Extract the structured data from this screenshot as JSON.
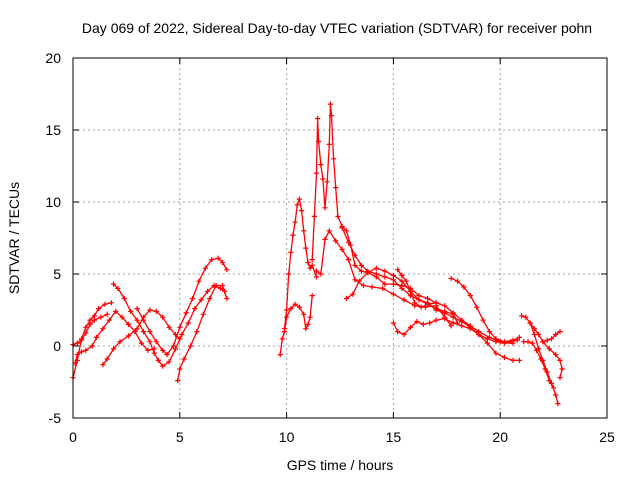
{
  "colors": {
    "series": "#ff0000",
    "text": "#000000",
    "grid": "#a0a0a0",
    "background": "#ffffff"
  },
  "chart_data": {
    "type": "scatter",
    "title": "Day 069 of 2022, Sidereal Day-to-day VTEC variation (SDTVAR) for receiver pohn",
    "xlabel": "GPS time / hours",
    "ylabel": "SDTVAR / TECUs",
    "xlim": [
      0,
      25
    ],
    "ylim": [
      -5,
      20
    ],
    "xticks": [
      0,
      5,
      10,
      15,
      20,
      25
    ],
    "yticks": [
      -5,
      0,
      5,
      10,
      15,
      20
    ],
    "grid": true,
    "marker": "+",
    "series": [
      {
        "name": "s1",
        "points": [
          [
            0.0,
            -2.2
          ],
          [
            0.2,
            -1.0
          ],
          [
            0.4,
            0.5
          ],
          [
            0.6,
            1.3
          ],
          [
            0.8,
            1.8
          ],
          [
            1.0,
            2.1
          ],
          [
            1.2,
            2.6
          ],
          [
            1.5,
            2.9
          ],
          [
            1.8,
            3.0
          ]
        ]
      },
      {
        "name": "s2",
        "points": [
          [
            0.0,
            0.1
          ],
          [
            0.2,
            0.2
          ],
          [
            0.4,
            0.4
          ],
          [
            0.6,
            0.9
          ],
          [
            0.8,
            1.5
          ],
          [
            1.0,
            1.8
          ],
          [
            1.3,
            2.0
          ],
          [
            1.6,
            2.2
          ]
        ]
      },
      {
        "name": "s3",
        "points": [
          [
            0.1,
            -1.2
          ],
          [
            0.2,
            -0.6
          ],
          [
            0.4,
            -0.4
          ],
          [
            0.6,
            -0.3
          ],
          [
            0.9,
            0.0
          ],
          [
            1.1,
            0.6
          ],
          [
            1.4,
            1.2
          ],
          [
            1.7,
            1.8
          ],
          [
            2.0,
            2.4
          ],
          [
            2.3,
            2.0
          ],
          [
            2.6,
            1.5
          ],
          [
            2.9,
            1.0
          ],
          [
            3.2,
            0.2
          ],
          [
            3.5,
            -0.3
          ],
          [
            3.8,
            -0.2
          ]
        ]
      },
      {
        "name": "s4",
        "points": [
          [
            1.4,
            -1.3
          ],
          [
            1.6,
            -0.9
          ],
          [
            1.9,
            -0.2
          ],
          [
            2.2,
            0.3
          ],
          [
            2.6,
            0.7
          ],
          [
            3.0,
            1.2
          ],
          [
            3.3,
            2.0
          ],
          [
            3.6,
            2.5
          ],
          [
            3.9,
            2.4
          ],
          [
            4.2,
            2.0
          ],
          [
            4.5,
            1.3
          ],
          [
            4.8,
            0.8
          ],
          [
            5.0,
            0.5
          ]
        ]
      },
      {
        "name": "s5",
        "points": [
          [
            1.9,
            4.3
          ],
          [
            2.1,
            4.0
          ],
          [
            2.4,
            3.3
          ],
          [
            2.7,
            2.4
          ],
          [
            3.0,
            1.8
          ],
          [
            3.3,
            1.0
          ],
          [
            3.6,
            0.3
          ],
          [
            3.8,
            -0.5
          ],
          [
            4.0,
            -1.0
          ],
          [
            4.2,
            -1.4
          ],
          [
            4.5,
            -1.1
          ],
          [
            4.8,
            -0.2
          ],
          [
            5.1,
            0.8
          ],
          [
            5.4,
            1.6
          ],
          [
            5.7,
            2.6
          ],
          [
            6.0,
            3.2
          ],
          [
            6.3,
            3.8
          ],
          [
            6.6,
            4.2
          ],
          [
            6.9,
            4.0
          ],
          [
            7.1,
            3.8
          ]
        ]
      },
      {
        "name": "s6",
        "points": [
          [
            3.0,
            2.6
          ],
          [
            3.3,
            1.8
          ],
          [
            3.6,
            1.0
          ],
          [
            3.9,
            0.3
          ],
          [
            4.2,
            -0.3
          ],
          [
            4.4,
            -0.6
          ],
          [
            4.7,
            0.0
          ],
          [
            5.0,
            1.3
          ],
          [
            5.3,
            2.3
          ],
          [
            5.6,
            3.3
          ],
          [
            5.9,
            4.5
          ],
          [
            6.2,
            5.4
          ],
          [
            6.5,
            6.0
          ],
          [
            6.8,
            6.1
          ],
          [
            7.0,
            5.8
          ],
          [
            7.2,
            5.3
          ]
        ]
      },
      {
        "name": "s7",
        "points": [
          [
            4.9,
            -2.4
          ],
          [
            5.0,
            -1.6
          ],
          [
            5.2,
            -0.9
          ],
          [
            5.5,
            0.0
          ],
          [
            5.8,
            1.0
          ],
          [
            6.1,
            2.2
          ],
          [
            6.4,
            3.3
          ],
          [
            6.7,
            4.2
          ],
          [
            7.0,
            4.2
          ],
          [
            7.2,
            3.3
          ]
        ]
      },
      {
        "name": "s8",
        "points": [
          [
            9.7,
            -0.6
          ],
          [
            9.8,
            0.5
          ],
          [
            9.9,
            1.0
          ],
          [
            10.0,
            2.0
          ],
          [
            10.2,
            2.6
          ],
          [
            10.4,
            2.9
          ],
          [
            10.6,
            2.7
          ],
          [
            10.8,
            2.2
          ],
          [
            10.9,
            1.2
          ],
          [
            11.0,
            1.5
          ],
          [
            11.1,
            2.0
          ],
          [
            11.2,
            3.5
          ]
        ]
      },
      {
        "name": "s9",
        "points": [
          [
            9.9,
            1.2
          ],
          [
            10.0,
            2.5
          ],
          [
            10.1,
            5.0
          ],
          [
            10.2,
            6.5
          ],
          [
            10.3,
            7.7
          ],
          [
            10.4,
            8.6
          ],
          [
            10.5,
            9.8
          ],
          [
            10.6,
            10.2
          ],
          [
            10.7,
            9.4
          ],
          [
            10.8,
            8.0
          ],
          [
            10.9,
            6.8
          ],
          [
            11.0,
            5.8
          ],
          [
            11.1,
            5.4
          ],
          [
            11.2,
            5.6
          ],
          [
            11.4,
            4.8
          ]
        ]
      },
      {
        "name": "s10",
        "points": [
          [
            11.2,
            6.0
          ],
          [
            11.3,
            9.0
          ],
          [
            11.4,
            12.0
          ],
          [
            11.45,
            15.8
          ],
          [
            11.5,
            14.2
          ],
          [
            11.6,
            12.6
          ],
          [
            11.7,
            11.6
          ],
          [
            11.8,
            9.6
          ],
          [
            11.9,
            11.4
          ],
          [
            12.0,
            14.0
          ],
          [
            12.05,
            16.8
          ],
          [
            12.1,
            16.0
          ],
          [
            12.2,
            13.0
          ],
          [
            12.3,
            11.0
          ],
          [
            12.4,
            9.0
          ],
          [
            12.6,
            8.3
          ],
          [
            12.8,
            8.0
          ],
          [
            13.0,
            7.0
          ],
          [
            13.2,
            5.6
          ],
          [
            13.5,
            5.2
          ],
          [
            13.8,
            5.1
          ],
          [
            14.2,
            4.8
          ],
          [
            14.6,
            4.3
          ],
          [
            15.0,
            4.3
          ],
          [
            15.4,
            4.2
          ],
          [
            15.8,
            4.0
          ],
          [
            16.2,
            3.5
          ],
          [
            16.6,
            3.3
          ],
          [
            17.0,
            3.0
          ]
        ]
      },
      {
        "name": "s11",
        "points": [
          [
            11.4,
            5.2
          ],
          [
            11.6,
            5.0
          ],
          [
            11.8,
            7.4
          ],
          [
            12.0,
            8.0
          ],
          [
            12.3,
            7.3
          ],
          [
            12.6,
            6.7
          ],
          [
            12.9,
            6.0
          ],
          [
            13.2,
            4.6
          ],
          [
            13.6,
            4.2
          ],
          [
            14.0,
            4.1
          ],
          [
            14.5,
            4.0
          ],
          [
            15.0,
            3.6
          ],
          [
            15.5,
            3.2
          ],
          [
            16.0,
            2.8
          ],
          [
            16.5,
            2.7
          ],
          [
            17.0,
            2.8
          ],
          [
            17.4,
            2.0
          ],
          [
            17.7,
            1.4
          ]
        ]
      },
      {
        "name": "s12",
        "points": [
          [
            12.6,
            8.2
          ],
          [
            12.9,
            7.2
          ],
          [
            13.2,
            6.3
          ],
          [
            13.5,
            5.6
          ],
          [
            13.8,
            5.2
          ],
          [
            14.2,
            5.0
          ],
          [
            14.6,
            4.8
          ],
          [
            15.0,
            4.6
          ],
          [
            15.4,
            4.0
          ],
          [
            15.8,
            3.5
          ],
          [
            16.2,
            3.2
          ],
          [
            16.6,
            3.0
          ],
          [
            17.0,
            2.5
          ],
          [
            17.4,
            2.3
          ],
          [
            17.8,
            2.0
          ],
          [
            18.2,
            1.7
          ],
          [
            18.6,
            1.3
          ],
          [
            19.0,
            0.8
          ],
          [
            19.4,
            0.5
          ],
          [
            19.8,
            0.3
          ],
          [
            20.2,
            0.2
          ],
          [
            20.6,
            0.2
          ]
        ]
      },
      {
        "name": "s13",
        "points": [
          [
            12.8,
            3.3
          ],
          [
            13.1,
            3.6
          ],
          [
            13.4,
            4.5
          ],
          [
            13.8,
            5.1
          ],
          [
            14.2,
            5.4
          ],
          [
            14.6,
            5.2
          ],
          [
            15.0,
            4.9
          ],
          [
            15.4,
            4.5
          ],
          [
            15.8,
            3.8
          ],
          [
            16.2,
            3.2
          ],
          [
            16.6,
            2.9
          ],
          [
            17.0,
            2.6
          ],
          [
            17.4,
            2.4
          ],
          [
            17.8,
            2.2
          ],
          [
            18.0,
            1.6
          ]
        ]
      },
      {
        "name": "s14",
        "points": [
          [
            15.0,
            1.6
          ],
          [
            15.2,
            1.0
          ],
          [
            15.5,
            0.8
          ],
          [
            15.8,
            1.3
          ],
          [
            16.1,
            1.7
          ],
          [
            16.4,
            1.5
          ],
          [
            16.7,
            1.6
          ],
          [
            17.0,
            1.8
          ],
          [
            17.4,
            1.9
          ],
          [
            17.8,
            1.6
          ],
          [
            18.2,
            1.4
          ],
          [
            18.6,
            1.2
          ],
          [
            19.0,
            0.8
          ],
          [
            19.4,
            0.2
          ],
          [
            19.8,
            -0.5
          ],
          [
            20.2,
            -0.8
          ],
          [
            20.6,
            -1.0
          ],
          [
            20.9,
            -1.0
          ]
        ]
      },
      {
        "name": "s15",
        "points": [
          [
            15.2,
            5.3
          ],
          [
            15.4,
            4.9
          ],
          [
            15.6,
            4.5
          ],
          [
            15.8,
            3.8
          ],
          [
            16.0,
            3.0
          ],
          [
            16.3,
            2.7
          ],
          [
            16.6,
            2.9
          ],
          [
            17.0,
            3.0
          ],
          [
            17.4,
            2.8
          ],
          [
            17.8,
            2.3
          ],
          [
            18.2,
            1.8
          ],
          [
            18.6,
            1.4
          ],
          [
            19.0,
            1.0
          ],
          [
            19.5,
            0.6
          ],
          [
            20.0,
            0.3
          ],
          [
            20.5,
            0.3
          ],
          [
            20.8,
            0.4
          ]
        ]
      },
      {
        "name": "s16",
        "points": [
          [
            17.7,
            4.7
          ],
          [
            18.0,
            4.5
          ],
          [
            18.3,
            4.1
          ],
          [
            18.6,
            3.5
          ],
          [
            18.9,
            2.7
          ],
          [
            19.2,
            1.8
          ],
          [
            19.5,
            1.0
          ],
          [
            19.8,
            0.5
          ],
          [
            20.2,
            0.3
          ],
          [
            20.6,
            0.4
          ],
          [
            20.9,
            0.6
          ]
        ]
      },
      {
        "name": "s17",
        "points": [
          [
            21.0,
            2.1
          ],
          [
            21.2,
            2.0
          ],
          [
            21.4,
            1.6
          ],
          [
            21.6,
            0.8
          ],
          [
            21.8,
            -0.2
          ],
          [
            22.0,
            -1.0
          ],
          [
            22.2,
            -1.8
          ],
          [
            22.4,
            -2.6
          ],
          [
            22.6,
            -3.4
          ],
          [
            22.7,
            -4.0
          ]
        ]
      },
      {
        "name": "s18",
        "points": [
          [
            21.1,
            0.3
          ],
          [
            21.3,
            0.3
          ],
          [
            21.5,
            0.2
          ],
          [
            21.7,
            -0.3
          ],
          [
            21.9,
            -0.9
          ],
          [
            22.1,
            -1.6
          ],
          [
            22.3,
            -2.4
          ],
          [
            22.5,
            -2.9
          ]
        ]
      },
      {
        "name": "s19",
        "points": [
          [
            21.4,
            1.6
          ],
          [
            21.6,
            1.2
          ],
          [
            21.8,
            0.8
          ],
          [
            22.0,
            0.3
          ],
          [
            22.3,
            -0.2
          ],
          [
            22.6,
            -0.6
          ],
          [
            22.8,
            -1.0
          ],
          [
            22.9,
            -1.6
          ],
          [
            22.8,
            -2.2
          ]
        ]
      },
      {
        "name": "s20",
        "points": [
          [
            22.0,
            0.3
          ],
          [
            22.2,
            0.4
          ],
          [
            22.4,
            0.5
          ],
          [
            22.6,
            0.8
          ],
          [
            22.8,
            1.0
          ]
        ]
      }
    ]
  }
}
